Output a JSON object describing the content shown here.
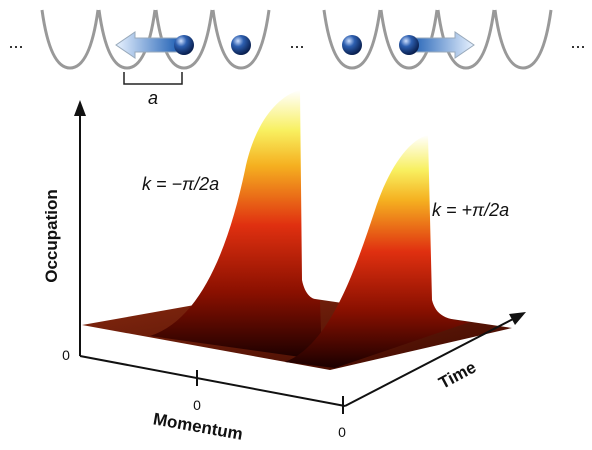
{
  "lattice": {
    "ellipses": [
      "...",
      "...",
      "..."
    ],
    "spacing_label": "a"
  },
  "plot": {
    "y_axis_label": "Occupation",
    "x_axis_label": "Momentum",
    "z_axis_label": "Time",
    "origin_labels": [
      "0",
      "0",
      "0"
    ],
    "peak_labels": [
      "k = −π/2a",
      "k = +π/2a"
    ]
  }
}
